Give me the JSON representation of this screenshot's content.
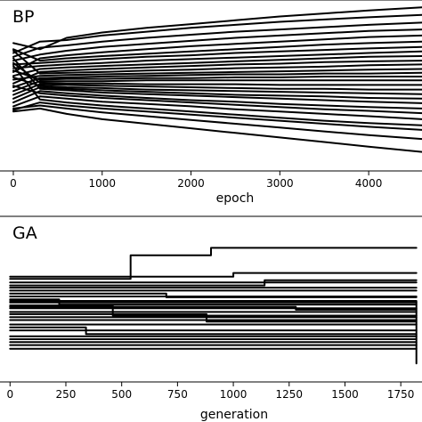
{
  "chart_data": [
    {
      "type": "line",
      "panel_label": "BP",
      "xlabel": "epoch",
      "ylabel": "",
      "xticks": [
        0,
        1000,
        2000,
        3000,
        4000
      ],
      "xlim": [
        -150,
        4600
      ],
      "ylim": [
        -1.2,
        1.0
      ],
      "grid": false,
      "x": [
        0,
        300,
        600,
        1000,
        1500,
        2000,
        2500,
        3000,
        3500,
        4000,
        4600
      ],
      "series_shape": "approximately 40 lines starting near the middle band and gradually diverging; top line rises to 0.95, bottom line falls to -0.95 by epoch 4600",
      "series": [
        {
          "values": [
            0.48,
            0.4,
            0.55,
            0.62,
            0.68,
            0.73,
            0.78,
            0.83,
            0.87,
            0.91,
            0.95
          ]
        },
        {
          "values": [
            0.35,
            0.5,
            0.52,
            0.58,
            0.63,
            0.68,
            0.72,
            0.76,
            0.79,
            0.82,
            0.85
          ]
        },
        {
          "values": [
            0.3,
            0.42,
            0.45,
            0.5,
            0.55,
            0.59,
            0.63,
            0.66,
            0.69,
            0.72,
            0.75
          ]
        },
        {
          "values": [
            0.25,
            0.33,
            0.38,
            0.43,
            0.47,
            0.51,
            0.55,
            0.58,
            0.61,
            0.64,
            0.66
          ]
        },
        {
          "values": [
            0.1,
            0.28,
            0.32,
            0.36,
            0.4,
            0.44,
            0.47,
            0.5,
            0.53,
            0.56,
            0.58
          ]
        },
        {
          "values": [
            0.4,
            0.25,
            0.28,
            0.31,
            0.34,
            0.37,
            0.4,
            0.43,
            0.46,
            0.48,
            0.5
          ]
        },
        {
          "values": [
            0.2,
            0.22,
            0.24,
            0.27,
            0.3,
            0.32,
            0.35,
            0.37,
            0.39,
            0.41,
            0.43
          ]
        },
        {
          "values": [
            0.15,
            0.18,
            0.2,
            0.22,
            0.25,
            0.27,
            0.29,
            0.31,
            0.33,
            0.35,
            0.37
          ]
        },
        {
          "values": [
            0.05,
            0.14,
            0.16,
            0.18,
            0.2,
            0.22,
            0.24,
            0.26,
            0.28,
            0.3,
            0.31
          ]
        },
        {
          "values": [
            -0.05,
            0.1,
            0.12,
            0.14,
            0.16,
            0.18,
            0.2,
            0.21,
            0.23,
            0.24,
            0.25
          ]
        },
        {
          "values": [
            0.38,
            0.08,
            0.09,
            0.1,
            0.12,
            0.13,
            0.15,
            0.16,
            0.17,
            0.19,
            0.2
          ]
        },
        {
          "values": [
            0.0,
            0.05,
            0.06,
            0.07,
            0.08,
            0.09,
            0.1,
            0.11,
            0.12,
            0.13,
            0.14
          ]
        },
        {
          "values": [
            -0.1,
            0.02,
            0.03,
            0.04,
            0.05,
            0.06,
            0.07,
            0.07,
            0.08,
            0.08,
            0.09
          ]
        },
        {
          "values": [
            0.12,
            0.0,
            0.01,
            0.01,
            0.02,
            0.02,
            0.03,
            0.03,
            0.04,
            0.04,
            0.04
          ]
        },
        {
          "values": [
            -0.15,
            -0.02,
            -0.02,
            -0.02,
            -0.01,
            -0.01,
            -0.01,
            -0.01,
            -0.01,
            -0.01,
            -0.01
          ]
        },
        {
          "values": [
            0.22,
            -0.04,
            -0.05,
            -0.05,
            -0.06,
            -0.06,
            -0.06,
            -0.07,
            -0.07,
            -0.07,
            -0.07
          ]
        },
        {
          "values": [
            -0.2,
            -0.06,
            -0.07,
            -0.08,
            -0.09,
            -0.1,
            -0.11,
            -0.12,
            -0.12,
            -0.13,
            -0.13
          ]
        },
        {
          "values": [
            0.03,
            -0.08,
            -0.1,
            -0.11,
            -0.13,
            -0.14,
            -0.15,
            -0.16,
            -0.17,
            -0.18,
            -0.19
          ]
        },
        {
          "values": [
            -0.25,
            -0.1,
            -0.12,
            -0.14,
            -0.16,
            -0.18,
            -0.2,
            -0.21,
            -0.22,
            -0.24,
            -0.25
          ]
        },
        {
          "values": [
            0.28,
            -0.12,
            -0.14,
            -0.17,
            -0.19,
            -0.21,
            -0.23,
            -0.25,
            -0.27,
            -0.29,
            -0.31
          ]
        },
        {
          "values": [
            -0.3,
            -0.15,
            -0.18,
            -0.21,
            -0.24,
            -0.27,
            -0.29,
            -0.32,
            -0.34,
            -0.36,
            -0.38
          ]
        },
        {
          "values": [
            -0.08,
            -0.18,
            -0.21,
            -0.24,
            -0.27,
            -0.3,
            -0.33,
            -0.36,
            -0.39,
            -0.41,
            -0.44
          ]
        },
        {
          "values": [
            -0.35,
            -0.22,
            -0.25,
            -0.29,
            -0.32,
            -0.35,
            -0.39,
            -0.42,
            -0.45,
            -0.48,
            -0.52
          ]
        },
        {
          "values": [
            0.18,
            -0.26,
            -0.3,
            -0.34,
            -0.38,
            -0.42,
            -0.46,
            -0.5,
            -0.54,
            -0.57,
            -0.6
          ]
        },
        {
          "values": [
            -0.4,
            -0.3,
            -0.34,
            -0.38,
            -0.42,
            -0.46,
            -0.5,
            -0.54,
            -0.58,
            -0.62,
            -0.66
          ]
        },
        {
          "values": [
            -0.38,
            -0.34,
            -0.38,
            -0.43,
            -0.48,
            -0.53,
            -0.58,
            -0.63,
            -0.68,
            -0.73,
            -0.78
          ]
        },
        {
          "values": [
            -0.42,
            -0.38,
            -0.45,
            -0.52,
            -0.58,
            -0.64,
            -0.7,
            -0.76,
            -0.82,
            -0.88,
            -0.95
          ]
        }
      ]
    },
    {
      "type": "line",
      "panel_label": "GA",
      "xlabel": "generation",
      "ylabel": "",
      "xticks": [
        0,
        250,
        500,
        750,
        1000,
        1250,
        1500,
        1750
      ],
      "xlim": [
        -45,
        1845
      ],
      "ylim": [
        -1.1,
        1.1
      ],
      "grid": false,
      "step": true,
      "series_shape": "approximately 40 stepwise flat lines in a band; occasional jumps; one line jumps down to -0.85 near generation 1820",
      "series": [
        {
          "x": [
            0,
            540,
            900,
            1820
          ],
          "values": [
            0.3,
            0.62,
            0.72,
            0.72
          ]
        },
        {
          "x": [
            0,
            1820
          ],
          "values": [
            0.25,
            0.25
          ]
        },
        {
          "x": [
            0,
            1140,
            1820
          ],
          "values": [
            0.21,
            0.28,
            0.28
          ]
        },
        {
          "x": [
            0,
            1820
          ],
          "values": [
            0.18,
            0.18
          ]
        },
        {
          "x": [
            0,
            1820
          ],
          "values": [
            0.14,
            0.14
          ]
        },
        {
          "x": [
            0,
            700,
            1820
          ],
          "values": [
            0.1,
            0.05,
            0.05
          ]
        },
        {
          "x": [
            0,
            1820
          ],
          "values": [
            0.06,
            0.06
          ]
        },
        {
          "x": [
            0,
            220,
            1820
          ],
          "values": [
            0.02,
            -0.05,
            -0.05
          ]
        },
        {
          "x": [
            0,
            1820
          ],
          "values": [
            -0.02,
            -0.02
          ]
        },
        {
          "x": [
            0,
            460,
            1820
          ],
          "values": [
            -0.06,
            -0.2,
            -0.2
          ]
        },
        {
          "x": [
            0,
            1820
          ],
          "values": [
            -0.1,
            -0.1
          ]
        },
        {
          "x": [
            0,
            1820
          ],
          "values": [
            -0.15,
            -0.15
          ]
        },
        {
          "x": [
            0,
            880,
            1820
          ],
          "values": [
            -0.18,
            -0.28,
            -0.28
          ]
        },
        {
          "x": [
            0,
            1820
          ],
          "values": [
            -0.22,
            -0.22
          ]
        },
        {
          "x": [
            0,
            1820
          ],
          "values": [
            -0.26,
            -0.26
          ]
        },
        {
          "x": [
            0,
            1820
          ],
          "values": [
            -0.32,
            -0.32
          ]
        },
        {
          "x": [
            0,
            340,
            1820
          ],
          "values": [
            -0.36,
            -0.45,
            -0.45
          ]
        },
        {
          "x": [
            0,
            1820
          ],
          "values": [
            -0.4,
            -0.4
          ]
        },
        {
          "x": [
            0,
            1820
          ],
          "values": [
            -0.48,
            -0.48
          ]
        },
        {
          "x": [
            0,
            1820
          ],
          "values": [
            -0.52,
            -0.52
          ]
        },
        {
          "x": [
            0,
            1820
          ],
          "values": [
            -0.56,
            -0.56
          ]
        },
        {
          "x": [
            0,
            1820
          ],
          "values": [
            -0.6,
            -0.6
          ]
        },
        {
          "x": [
            0,
            1820
          ],
          "values": [
            -0.65,
            -0.65
          ]
        },
        {
          "x": [
            0,
            1000,
            1820
          ],
          "values": [
            0.33,
            0.38,
            0.38
          ]
        },
        {
          "x": [
            0,
            1280,
            1820
          ],
          "values": [
            -0.08,
            -0.12,
            -0.12
          ]
        },
        {
          "x": [
            0,
            1820,
            1820
          ],
          "values": [
            0.0,
            0.0,
            -0.85
          ]
        }
      ]
    }
  ]
}
